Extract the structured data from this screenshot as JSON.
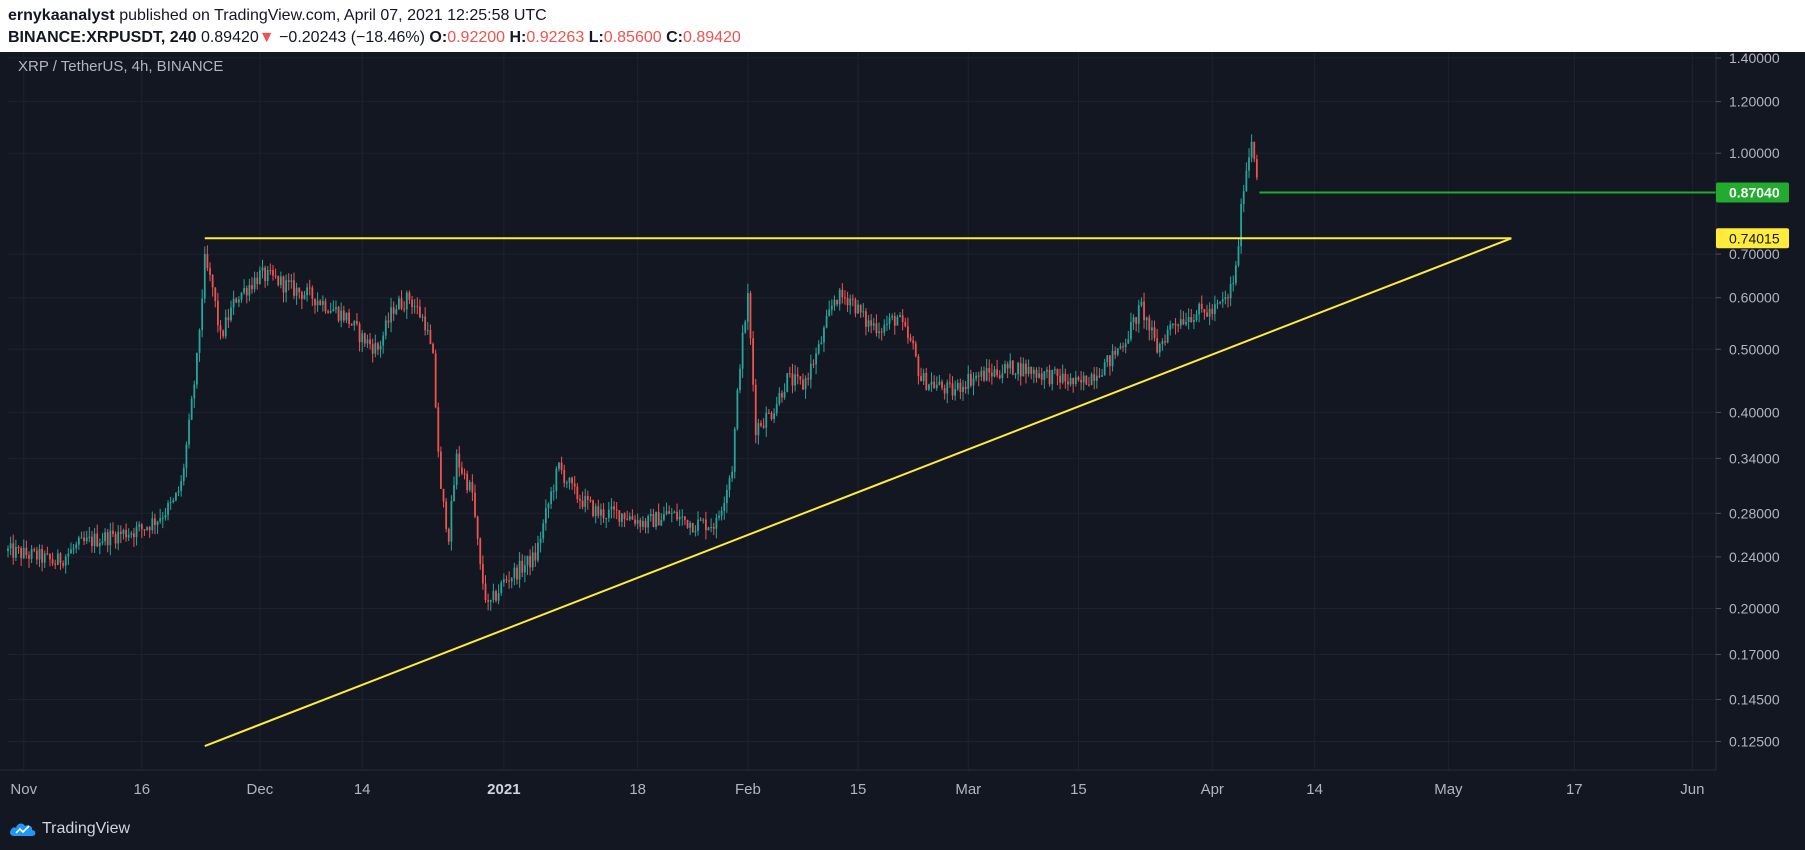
{
  "header": {
    "author": "ernykaanalyst",
    "published_text": "published on TradingView.com, April 07, 2021 12:25:58 UTC",
    "symbol": "BINANCE:XRPUSDT, 240",
    "last_price": "0.89420",
    "change_arrow": "▼",
    "change": "−0.20243 (−18.46%)",
    "o_label": "O:",
    "open": "0.92200",
    "h_label": "H:",
    "high": "0.92263",
    "l_label": "L:",
    "low": "0.85600",
    "c_label": "C:",
    "close": "0.89420"
  },
  "footer": {
    "brand": "TradingView"
  },
  "colors": {
    "background": "#131722",
    "grid": "#1e222d",
    "axis_text": "#b2b5be",
    "up": "#26a69a",
    "down": "#ef5350",
    "trendline": "#ffeb3b",
    "level_green": "#22ab2e",
    "label_yellow": "#ffeb3b"
  },
  "chart_data": {
    "type": "candlestick",
    "title": "XRP / TetherUS, 4h, BINANCE",
    "y_scale": "log",
    "ylim": [
      0.113,
      1.43
    ],
    "y_ticks": [
      "1.40000",
      "1.20000",
      "1.00000",
      "0.70000",
      "0.60000",
      "0.50000",
      "0.40000",
      "0.34000",
      "0.28000",
      "0.24000",
      "0.20000",
      "0.17000",
      "0.14500",
      "0.12500"
    ],
    "x_ticks": [
      {
        "label": "Nov",
        "date": "2020-11-01",
        "bold": false
      },
      {
        "label": "16",
        "date": "2020-11-16",
        "bold": false
      },
      {
        "label": "Dec",
        "date": "2020-12-01",
        "bold": false
      },
      {
        "label": "14",
        "date": "2020-12-14",
        "bold": false
      },
      {
        "label": "2021",
        "date": "2021-01-01",
        "bold": true
      },
      {
        "label": "18",
        "date": "2021-01-18",
        "bold": false
      },
      {
        "label": "Feb",
        "date": "2021-02-01",
        "bold": false
      },
      {
        "label": "15",
        "date": "2021-02-15",
        "bold": false
      },
      {
        "label": "Mar",
        "date": "2021-03-01",
        "bold": false
      },
      {
        "label": "15",
        "date": "2021-03-15",
        "bold": false
      },
      {
        "label": "Apr",
        "date": "2021-04-01",
        "bold": false
      },
      {
        "label": "14",
        "date": "2021-04-14",
        "bold": false
      },
      {
        "label": "May",
        "date": "2021-05-01",
        "bold": false
      },
      {
        "label": "17",
        "date": "2021-05-17",
        "bold": false
      },
      {
        "label": "Jun",
        "date": "2021-06-01",
        "bold": false
      }
    ],
    "x_range": [
      "2020-10-30",
      "2021-06-04"
    ],
    "price_path": [
      [
        "2020-10-30",
        0.245
      ],
      [
        "2020-11-03",
        0.24
      ],
      [
        "2020-11-05",
        0.235
      ],
      [
        "2020-11-08",
        0.25
      ],
      [
        "2020-11-10",
        0.255
      ],
      [
        "2020-11-13",
        0.26
      ],
      [
        "2020-11-16",
        0.265
      ],
      [
        "2020-11-18",
        0.275
      ],
      [
        "2020-11-20",
        0.29
      ],
      [
        "2020-11-21",
        0.31
      ],
      [
        "2020-11-22",
        0.38
      ],
      [
        "2020-11-23",
        0.48
      ],
      [
        "2020-11-24",
        0.68
      ],
      [
        "2020-11-25",
        0.62
      ],
      [
        "2020-11-26",
        0.52
      ],
      [
        "2020-11-27",
        0.56
      ],
      [
        "2020-11-28",
        0.6
      ],
      [
        "2020-12-01",
        0.65
      ],
      [
        "2020-12-03",
        0.64
      ],
      [
        "2020-12-05",
        0.62
      ],
      [
        "2020-12-08",
        0.6
      ],
      [
        "2020-12-10",
        0.58
      ],
      [
        "2020-12-12",
        0.56
      ],
      [
        "2020-12-14",
        0.52
      ],
      [
        "2020-12-16",
        0.5
      ],
      [
        "2020-12-18",
        0.58
      ],
      [
        "2020-12-20",
        0.6
      ],
      [
        "2020-12-22",
        0.55
      ],
      [
        "2020-12-23",
        0.48
      ],
      [
        "2020-12-24",
        0.3
      ],
      [
        "2020-12-25",
        0.26
      ],
      [
        "2020-12-26",
        0.34
      ],
      [
        "2020-12-28",
        0.3
      ],
      [
        "2020-12-29",
        0.23
      ],
      [
        "2020-12-30",
        0.2
      ],
      [
        "2021-01-01",
        0.22
      ],
      [
        "2021-01-03",
        0.23
      ],
      [
        "2021-01-05",
        0.24
      ],
      [
        "2021-01-07",
        0.3
      ],
      [
        "2021-01-08",
        0.33
      ],
      [
        "2021-01-10",
        0.3
      ],
      [
        "2021-01-13",
        0.28
      ],
      [
        "2021-01-16",
        0.28
      ],
      [
        "2021-01-19",
        0.27
      ],
      [
        "2021-01-22",
        0.28
      ],
      [
        "2021-01-25",
        0.27
      ],
      [
        "2021-01-28",
        0.27
      ],
      [
        "2021-01-30",
        0.33
      ],
      [
        "2021-01-31",
        0.48
      ],
      [
        "2021-02-01",
        0.6
      ],
      [
        "2021-02-02",
        0.38
      ],
      [
        "2021-02-04",
        0.4
      ],
      [
        "2021-02-06",
        0.45
      ],
      [
        "2021-02-08",
        0.44
      ],
      [
        "2021-02-10",
        0.5
      ],
      [
        "2021-02-12",
        0.6
      ],
      [
        "2021-02-14",
        0.6
      ],
      [
        "2021-02-16",
        0.55
      ],
      [
        "2021-02-18",
        0.54
      ],
      [
        "2021-02-20",
        0.56
      ],
      [
        "2021-02-22",
        0.5
      ],
      [
        "2021-02-23",
        0.45
      ],
      [
        "2021-02-25",
        0.44
      ],
      [
        "2021-02-27",
        0.43
      ],
      [
        "2021-03-01",
        0.45
      ],
      [
        "2021-03-04",
        0.46
      ],
      [
        "2021-03-07",
        0.47
      ],
      [
        "2021-03-10",
        0.46
      ],
      [
        "2021-03-13",
        0.45
      ],
      [
        "2021-03-15",
        0.44
      ],
      [
        "2021-03-17",
        0.46
      ],
      [
        "2021-03-19",
        0.48
      ],
      [
        "2021-03-21",
        0.52
      ],
      [
        "2021-03-23",
        0.58
      ],
      [
        "2021-03-25",
        0.5
      ],
      [
        "2021-03-27",
        0.55
      ],
      [
        "2021-03-30",
        0.57
      ],
      [
        "2021-04-01",
        0.57
      ],
      [
        "2021-04-03",
        0.6
      ],
      [
        "2021-04-04",
        0.66
      ],
      [
        "2021-04-05",
        0.9
      ],
      [
        "2021-04-06",
        1.05
      ],
      [
        "2021-04-07",
        0.89
      ]
    ],
    "annotations": [
      {
        "type": "trendline",
        "name": "resistance",
        "from": [
          "2020-11-24",
          0.74015
        ],
        "to": [
          "2021-05-09",
          0.74015
        ]
      },
      {
        "type": "trendline",
        "name": "support",
        "from": [
          "2020-11-24",
          0.123
        ],
        "to": [
          "2021-05-09",
          0.74015
        ]
      },
      {
        "type": "horizontal",
        "name": "level",
        "from": [
          "2021-04-07",
          0.8704
        ],
        "to": "right_edge"
      }
    ],
    "price_labels": [
      {
        "value": "0.87040",
        "price": 0.8704,
        "color": "green"
      },
      {
        "value": "0.74015",
        "price": 0.74015,
        "color": "yellow"
      }
    ],
    "grid": true
  }
}
